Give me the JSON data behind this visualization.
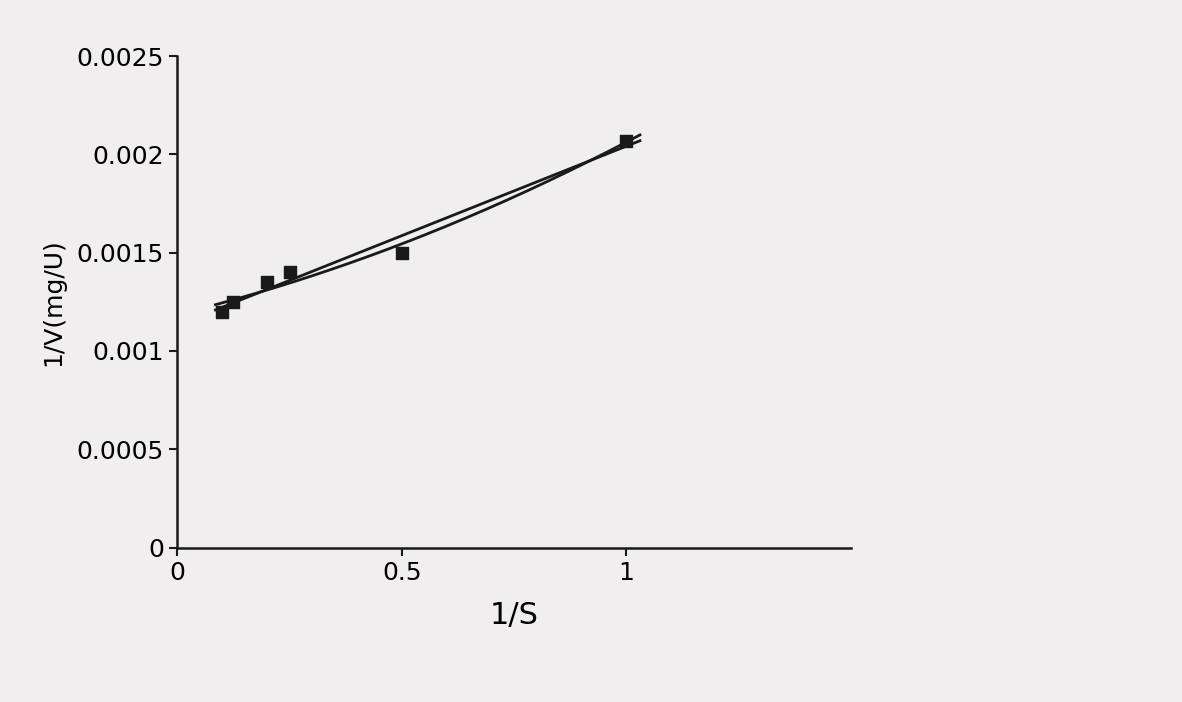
{
  "x_data": [
    0.1,
    0.125,
    0.2,
    0.25,
    0.5,
    1.0
  ],
  "y_data": [
    0.0012,
    0.00125,
    0.00135,
    0.0014,
    0.0015,
    0.00207
  ],
  "xlabel": "1/S",
  "ylabel": "1/V(mg/U)",
  "xlim": [
    0,
    1.5
  ],
  "ylim": [
    0,
    0.0025
  ],
  "xticks": [
    0,
    0.5,
    1.0
  ],
  "ytick_labels": [
    "0",
    "0.0005",
    "0.001",
    "0.0015",
    "0.002",
    "0.0025"
  ],
  "ytick_values": [
    0,
    0.0005,
    0.001,
    0.0015,
    0.002,
    0.0025
  ],
  "marker_color": "#1a1a1a",
  "line_color": "#1a1a1a",
  "background_color": "#f0eeee",
  "xlabel_fontsize": 22,
  "ylabel_fontsize": 18,
  "tick_fontsize": 18,
  "spine_color": "#1a1a1a"
}
